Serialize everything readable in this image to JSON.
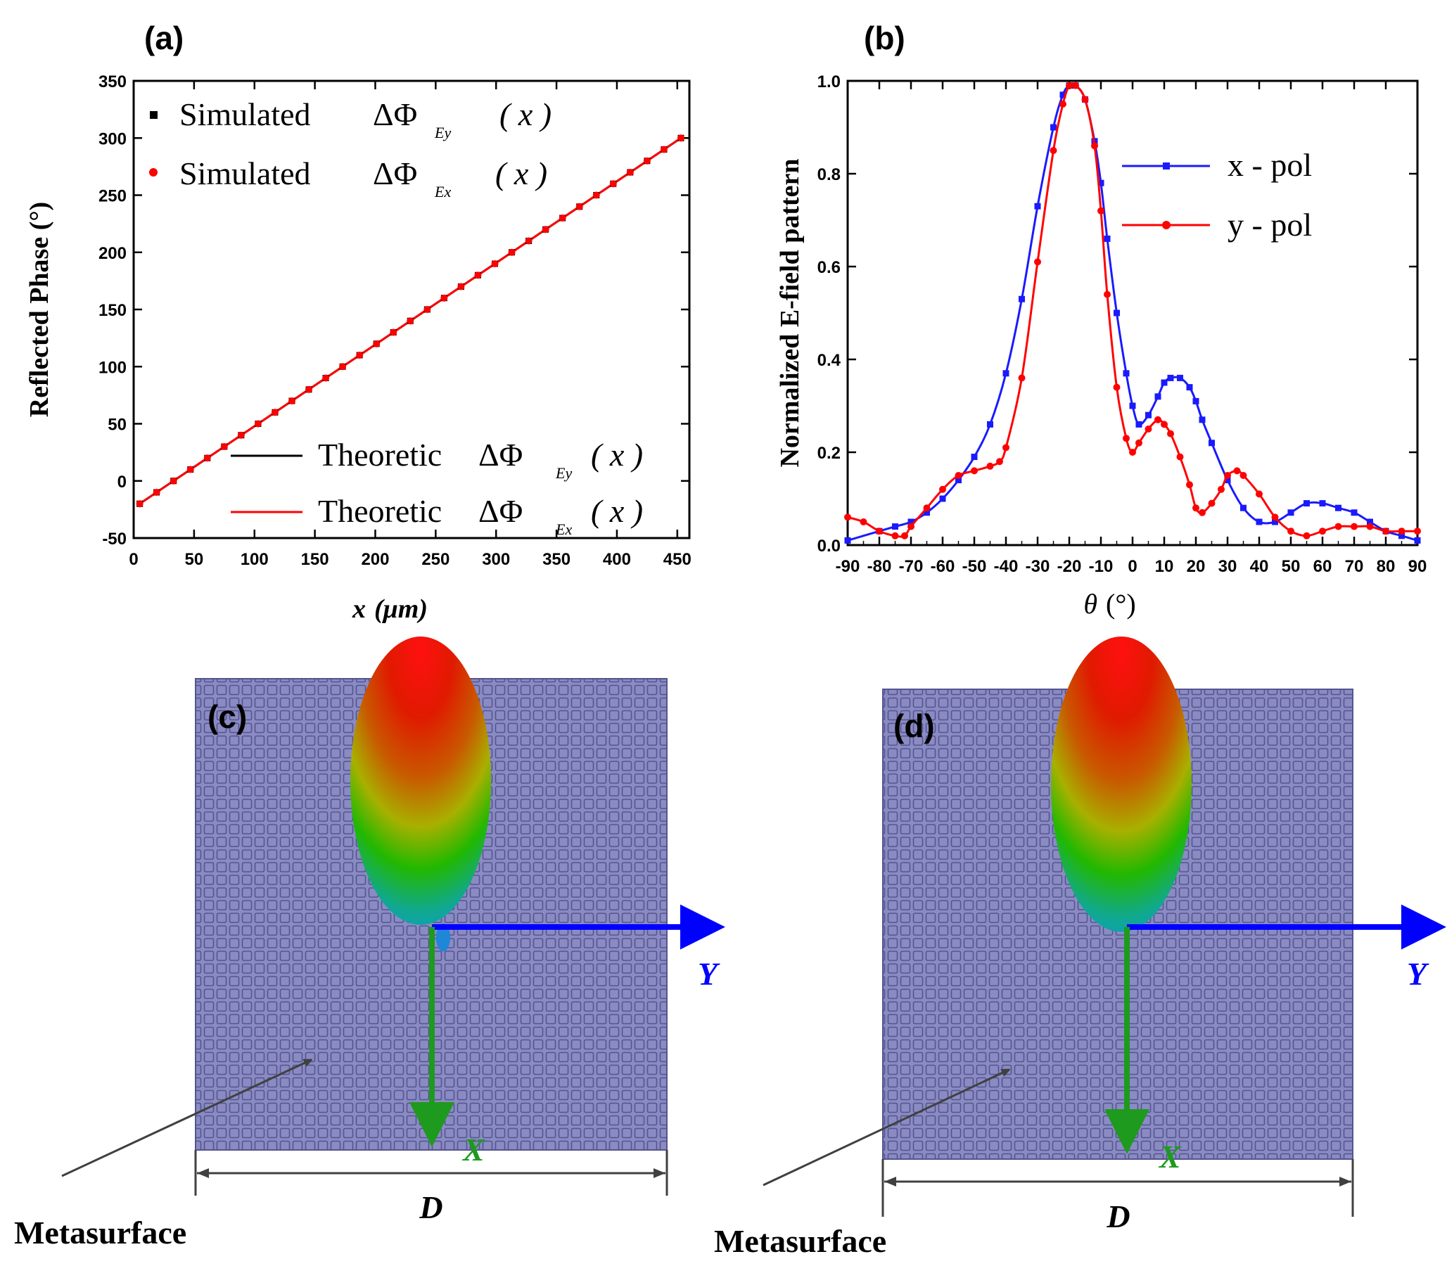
{
  "colors": {
    "red": "#ff0000",
    "blue": "#1a1aff",
    "black": "#000000",
    "metasurface": "#8b8bc4",
    "grid_line": "#54548f",
    "x_arrow": "#1e9a1e",
    "y_arrow": "#0000ff",
    "arrow_gray": "#404040"
  },
  "chart_data": [
    {
      "panel": "(a)",
      "type": "line",
      "xlabel": "x (μm)",
      "xlabel_var": "x",
      "xlabel_unit": "(μm)",
      "ylabel": "Reflected Phase (°)",
      "xlim": [
        0,
        460
      ],
      "ylim": [
        -50,
        350
      ],
      "xticks": [
        0,
        50,
        100,
        150,
        200,
        250,
        300,
        350,
        400,
        450
      ],
      "yticks": [
        -50,
        0,
        50,
        100,
        150,
        200,
        250,
        300,
        350
      ],
      "legend_top": [
        {
          "label": "Simulated",
          "math": "ΔΦ",
          "sub": "Ey",
          "arg": "( x )",
          "marker": "square",
          "color": "#000000"
        },
        {
          "label": "Simulated",
          "math": "ΔΦ",
          "sub": "Ex",
          "arg": "( x )",
          "marker": "circle",
          "color": "#ff0000"
        }
      ],
      "legend_bottom": [
        {
          "label": "Theoretic",
          "math": "ΔΦ",
          "sub": "Ey",
          "arg": "( x )",
          "color": "#000000"
        },
        {
          "label": "Theoretic",
          "math": "ΔΦ",
          "sub": "Ex",
          "arg": "( x )",
          "color": "#ff0000"
        }
      ],
      "series": [
        {
          "name": "Simulated ΔΦEy(x)",
          "kind": "markers",
          "marker": "square",
          "color": "#000000",
          "x": [
            5,
            19,
            33,
            47,
            61,
            75,
            89,
            103,
            117,
            131,
            145,
            159,
            173,
            187,
            201,
            215,
            229,
            243,
            257,
            271,
            285,
            299,
            313,
            327,
            341,
            355,
            369,
            383,
            397,
            411,
            425,
            439,
            453
          ],
          "y": [
            -20,
            -10,
            0,
            10,
            20,
            30,
            40,
            50,
            60,
            70,
            80,
            90,
            100,
            110,
            120,
            130,
            140,
            150,
            160,
            170,
            180,
            190,
            200,
            210,
            220,
            230,
            240,
            250,
            260,
            270,
            280,
            290,
            300
          ]
        },
        {
          "name": "Simulated ΔΦEx(x)",
          "kind": "markers",
          "marker": "circle",
          "color": "#ff0000",
          "x": [
            5,
            19,
            33,
            47,
            61,
            75,
            89,
            103,
            117,
            131,
            145,
            159,
            173,
            187,
            201,
            215,
            229,
            243,
            257,
            271,
            285,
            299,
            313,
            327,
            341,
            355,
            369,
            383,
            397,
            411,
            425,
            439,
            453
          ],
          "y": [
            -20,
            -10,
            0,
            10,
            20,
            30,
            40,
            50,
            60,
            70,
            80,
            90,
            100,
            110,
            120,
            130,
            140,
            150,
            160,
            170,
            180,
            190,
            200,
            210,
            220,
            230,
            240,
            250,
            260,
            270,
            280,
            290,
            300
          ]
        },
        {
          "name": "Theoretic ΔΦEy(x)",
          "kind": "line",
          "color": "#000000",
          "x": [
            5,
            453
          ],
          "y": [
            -20,
            300
          ]
        },
        {
          "name": "Theoretic ΔΦEx(x)",
          "kind": "line",
          "color": "#ff0000",
          "x": [
            5,
            453
          ],
          "y": [
            -20,
            300
          ]
        }
      ]
    },
    {
      "panel": "(b)",
      "type": "line",
      "xlabel": "θ (°)",
      "xlabel_var": "θ",
      "xlabel_unit": "(°)",
      "ylabel": "Normalized E-field pattern",
      "xlim": [
        -90,
        90
      ],
      "ylim": [
        0,
        1.0
      ],
      "xticks": [
        -90,
        -80,
        -70,
        -60,
        -50,
        -40,
        -30,
        -20,
        -10,
        0,
        10,
        20,
        30,
        40,
        50,
        60,
        70,
        80,
        90
      ],
      "yticks": [
        0.0,
        0.2,
        0.4,
        0.6,
        0.8,
        1.0
      ],
      "ytick_labels": [
        "0.0",
        "0.2",
        "0.4",
        "0.6",
        "0.8",
        "1.0"
      ],
      "legend": [
        {
          "label": "x - pol",
          "color": "#1a1aff",
          "marker": "square"
        },
        {
          "label": "y - pol",
          "color": "#ff0000",
          "marker": "circle"
        }
      ],
      "series": [
        {
          "name": "x - pol",
          "color": "#1a1aff",
          "marker": "square",
          "x": [
            -90,
            -80,
            -75,
            -70,
            -65,
            -60,
            -55,
            -50,
            -45,
            -40,
            -35,
            -30,
            -25,
            -22,
            -20,
            -18,
            -15,
            -12,
            -10,
            -8,
            -5,
            -2,
            0,
            2,
            5,
            8,
            10,
            12,
            15,
            18,
            20,
            22,
            25,
            30,
            35,
            40,
            45,
            50,
            55,
            60,
            65,
            70,
            75,
            80,
            85,
            90
          ],
          "y": [
            0.01,
            0.03,
            0.04,
            0.05,
            0.07,
            0.1,
            0.14,
            0.19,
            0.26,
            0.37,
            0.53,
            0.73,
            0.9,
            0.97,
            0.99,
            0.99,
            0.96,
            0.87,
            0.78,
            0.66,
            0.5,
            0.37,
            0.3,
            0.26,
            0.28,
            0.32,
            0.35,
            0.36,
            0.36,
            0.34,
            0.31,
            0.27,
            0.22,
            0.14,
            0.08,
            0.05,
            0.05,
            0.07,
            0.09,
            0.09,
            0.08,
            0.07,
            0.05,
            0.03,
            0.02,
            0.01
          ]
        },
        {
          "name": "y - pol",
          "color": "#ff0000",
          "marker": "circle",
          "x": [
            -90,
            -85,
            -80,
            -75,
            -72,
            -70,
            -65,
            -60,
            -55,
            -50,
            -45,
            -42,
            -40,
            -35,
            -30,
            -25,
            -22,
            -20,
            -18,
            -15,
            -12,
            -10,
            -8,
            -5,
            -2,
            0,
            2,
            5,
            8,
            10,
            12,
            15,
            18,
            20,
            22,
            25,
            28,
            30,
            33,
            35,
            40,
            45,
            50,
            55,
            60,
            65,
            70,
            75,
            80,
            85,
            90
          ],
          "y": [
            0.06,
            0.05,
            0.03,
            0.02,
            0.02,
            0.04,
            0.08,
            0.12,
            0.15,
            0.16,
            0.17,
            0.18,
            0.21,
            0.36,
            0.61,
            0.85,
            0.95,
            0.99,
            0.99,
            0.96,
            0.86,
            0.72,
            0.54,
            0.34,
            0.23,
            0.2,
            0.22,
            0.25,
            0.27,
            0.26,
            0.24,
            0.19,
            0.13,
            0.08,
            0.07,
            0.09,
            0.12,
            0.15,
            0.16,
            0.15,
            0.11,
            0.06,
            0.03,
            0.02,
            0.03,
            0.04,
            0.04,
            0.04,
            0.03,
            0.03,
            0.03
          ]
        }
      ]
    }
  ],
  "panels": {
    "c": {
      "label": "(c)",
      "y_axis": "Y",
      "x_axis": "X",
      "dimension": "D",
      "caption": "Metasurface"
    },
    "d": {
      "label": "(d)",
      "y_axis": "Y",
      "x_axis": "X",
      "dimension": "D",
      "caption": "Metasurface"
    }
  }
}
